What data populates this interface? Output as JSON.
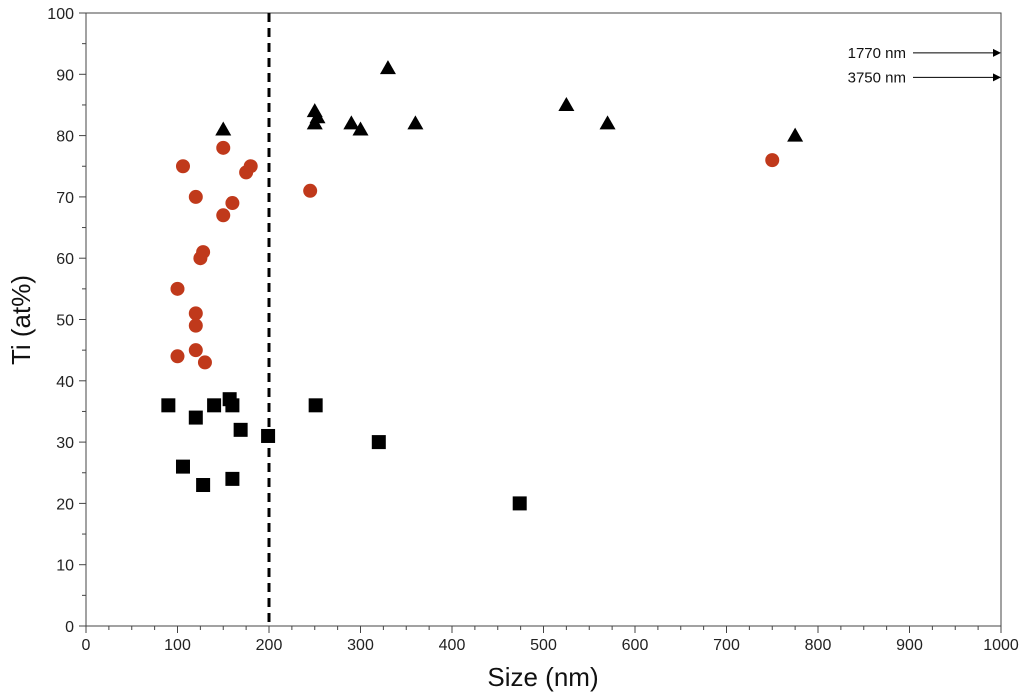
{
  "chart_data": {
    "type": "scatter",
    "title": "",
    "xlabel": "Size (nm)",
    "ylabel": "Ti (at%)",
    "xlim": [
      0,
      1000
    ],
    "ylim": [
      0,
      100
    ],
    "xticks": [
      "0",
      "100",
      "200",
      "300",
      "400",
      "500",
      "600",
      "700",
      "800",
      "900",
      "1000"
    ],
    "yticks": [
      "0",
      "10",
      "20",
      "30",
      "40",
      "50",
      "60",
      "70",
      "80",
      "90",
      "100"
    ],
    "grid": false,
    "reference_line": {
      "x": 200,
      "style": "dashed"
    },
    "series": [
      {
        "name": "squares",
        "marker": "square",
        "color": "#000000",
        "points": [
          [
            90,
            36
          ],
          [
            106,
            26
          ],
          [
            120,
            34
          ],
          [
            128,
            23
          ],
          [
            140,
            36
          ],
          [
            157,
            37
          ],
          [
            160,
            36
          ],
          [
            160,
            24
          ],
          [
            169,
            32
          ],
          [
            199,
            31
          ],
          [
            251,
            36
          ],
          [
            320,
            30
          ],
          [
            474,
            20
          ]
        ]
      },
      {
        "name": "circles",
        "marker": "circle",
        "color": "#C0391B",
        "points": [
          [
            100,
            44
          ],
          [
            100,
            55
          ],
          [
            106,
            75
          ],
          [
            120,
            70
          ],
          [
            120,
            51
          ],
          [
            120,
            49
          ],
          [
            120,
            45
          ],
          [
            125,
            60
          ],
          [
            128,
            61
          ],
          [
            130,
            43
          ],
          [
            150,
            78
          ],
          [
            150,
            67
          ],
          [
            160,
            69
          ],
          [
            175,
            74
          ],
          [
            180,
            75
          ],
          [
            245,
            71
          ],
          [
            750,
            76
          ]
        ]
      },
      {
        "name": "triangles",
        "marker": "triangle",
        "color": "#000000",
        "points": [
          [
            150,
            81
          ],
          [
            250,
            84
          ],
          [
            250,
            82
          ],
          [
            253,
            83
          ],
          [
            290,
            82
          ],
          [
            300,
            81
          ],
          [
            330,
            91
          ],
          [
            360,
            82
          ],
          [
            525,
            85
          ],
          [
            570,
            82
          ],
          [
            775,
            80
          ]
        ]
      }
    ],
    "annotations": [
      {
        "text": "1770 nm",
        "y": 93.5
      },
      {
        "text": "3750 nm",
        "y": 89.5
      }
    ]
  }
}
